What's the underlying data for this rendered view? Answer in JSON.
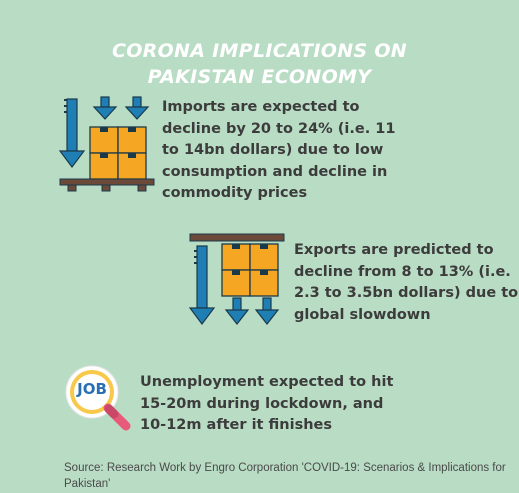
{
  "title_line1": "CORONA IMPLICATIONS ON",
  "title_line2": "PAKISTAN ECONOMY",
  "imports_text": "Imports are expected to decline by 20 to 24% (i.e. 11 to 14bn dollars) due to low consumption and decline in commodity prices",
  "exports_text": "Exports are predicted to decline from 8 to 13% (i.e. 2.3 to 3.5bn dollars) due to global slowdown",
  "job_label": "JOB",
  "unemployment_text": "Unemployment expected to hit 15-20m during lockdown, and 10-12m after it finishes",
  "source": "Source: Research Work by Engro Corporation 'COVID-19:  Scenarios & Implications  for Pakistan'",
  "colors": {
    "background": "#b9dcc4",
    "title": "#ffffff",
    "text": "#3c3c3c",
    "arrow_blue": "#1f7fb5",
    "box_orange": "#f5a623",
    "pallet_brown": "#6b4a3a",
    "job_badge": "#f7c84a",
    "job_text": "#2a6fb3",
    "magnifier_handle": "#e85a7a"
  },
  "icons": [
    "imports-decline-icon",
    "exports-decline-icon",
    "job-search-icon"
  ]
}
